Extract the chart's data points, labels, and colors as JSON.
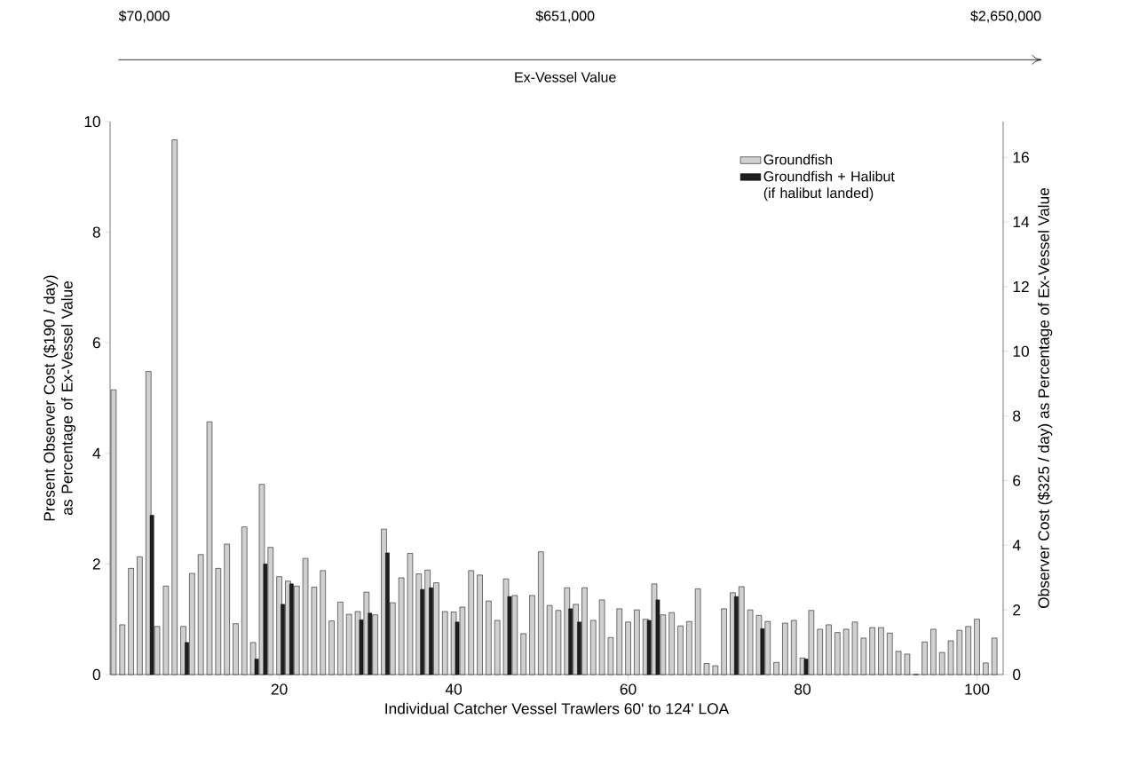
{
  "chart_data": {
    "type": "bar",
    "xlabel": "Individual Catcher Vessel Trawlers 60' to 124' LOA",
    "ylabel": "Present Observer Cost ($190 / day) as Percentage of Ex-Vessel Value",
    "y2label": "Observer Cost ($325 / day) as Percentage of Ex-Vessel Value",
    "annotations": [
      "$70,000",
      "$651,000",
      "$2,650,000",
      "Ex-Vessel Value"
    ],
    "x": [
      1,
      2,
      3,
      4,
      5,
      6,
      7,
      8,
      9,
      10,
      11,
      12,
      13,
      14,
      15,
      16,
      17,
      18,
      19,
      20,
      21,
      22,
      23,
      24,
      25,
      26,
      27,
      28,
      29,
      30,
      31,
      32,
      33,
      34,
      35,
      36,
      37,
      38,
      39,
      40,
      41,
      42,
      43,
      44,
      45,
      46,
      47,
      48,
      49,
      50,
      51,
      52,
      53,
      54,
      55,
      56,
      57,
      58,
      59,
      60,
      61,
      62,
      63,
      64,
      65,
      66,
      67,
      68,
      69,
      70,
      71,
      72,
      73,
      74,
      75,
      76,
      77,
      78,
      79,
      80,
      81,
      82,
      83,
      84,
      85,
      86,
      87,
      88,
      89,
      90,
      91,
      92,
      93,
      94,
      95,
      96,
      97,
      98,
      99,
      100,
      101,
      102
    ],
    "series": [
      {
        "name": "Groundfish",
        "color": "#d0d0d0",
        "values": [
          5.15,
          0.9,
          1.92,
          2.13,
          5.48,
          0.87,
          1.6,
          9.67,
          0.87,
          1.83,
          2.17,
          4.57,
          1.92,
          2.36,
          0.92,
          2.67,
          0.58,
          3.44,
          2.3,
          1.77,
          1.69,
          1.6,
          2.1,
          1.58,
          1.88,
          0.97,
          1.31,
          1.09,
          1.14,
          1.49,
          1.08,
          2.63,
          1.3,
          1.75,
          2.19,
          1.82,
          1.89,
          1.66,
          1.14,
          1.13,
          1.22,
          1.88,
          1.8,
          1.33,
          0.98,
          1.73,
          1.43,
          0.74,
          1.43,
          2.22,
          1.25,
          1.16,
          1.57,
          1.27,
          1.57,
          0.98,
          1.35,
          0.67,
          1.19,
          0.95,
          1.17,
          1.0,
          1.64,
          1.08,
          1.12,
          0.88,
          0.96,
          1.55,
          0.2,
          0.16,
          1.19,
          1.48,
          1.59,
          1.17,
          1.07,
          0.96,
          0.22,
          0.93,
          0.98,
          0.3,
          1.16,
          0.82,
          0.9,
          0.76,
          0.82,
          0.95,
          0.66,
          0.85,
          0.85,
          0.75,
          0.42,
          0.37,
          0,
          0.59,
          0.82,
          0.4,
          0.61,
          0.8,
          0.87,
          1.0,
          0.21,
          0.66
        ]
      },
      {
        "name": "Groundfish + Halibut (if halibut landed)",
        "color": "#1e1e1e",
        "values": [
          null,
          null,
          null,
          null,
          2.88,
          null,
          null,
          null,
          0.58,
          null,
          null,
          null,
          null,
          null,
          null,
          null,
          0.28,
          2.0,
          null,
          1.27,
          1.64,
          null,
          null,
          null,
          null,
          null,
          null,
          null,
          0.99,
          1.11,
          null,
          2.2,
          null,
          null,
          null,
          1.54,
          1.57,
          null,
          null,
          0.95,
          null,
          null,
          null,
          null,
          null,
          1.41,
          null,
          null,
          null,
          null,
          null,
          null,
          1.19,
          0.95,
          null,
          null,
          null,
          null,
          null,
          null,
          null,
          0.98,
          1.35,
          null,
          null,
          null,
          null,
          null,
          null,
          null,
          null,
          1.41,
          null,
          null,
          0.83,
          null,
          null,
          null,
          null,
          0.28,
          null,
          null,
          null,
          null,
          null,
          null,
          null,
          null,
          null,
          null,
          null,
          null,
          null,
          null,
          null,
          null,
          null,
          null,
          null,
          null,
          null,
          null
        ]
      }
    ],
    "xlim": [
      0.6,
      103
    ],
    "xticks": [
      20,
      40,
      60,
      80,
      100
    ],
    "ylim": [
      0,
      10
    ],
    "yticks": [
      0,
      2,
      4,
      6,
      8,
      10
    ],
    "y2lim": [
      0,
      17.105
    ],
    "y2ticks": [
      0,
      2,
      4,
      6,
      8,
      10,
      12,
      14,
      16
    ],
    "legend": "top right"
  }
}
